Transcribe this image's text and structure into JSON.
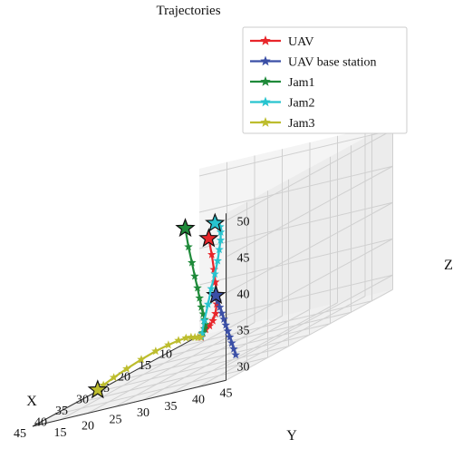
{
  "chart_data": {
    "type": "line",
    "projection": "3d",
    "title": "Trajectories",
    "xlabel": "X",
    "ylabel": "Y",
    "zlabel": "Z",
    "xlim": [
      5,
      45
    ],
    "ylim": [
      10,
      45
    ],
    "zlim": [
      28,
      51
    ],
    "xticks": [
      10,
      15,
      20,
      25,
      30,
      35,
      40,
      45
    ],
    "yticks": [
      15,
      20,
      25,
      30,
      35,
      40,
      45
    ],
    "zticks": [
      30,
      35,
      40,
      45,
      50
    ],
    "grid": true,
    "legend_position": "top-right",
    "marker": "star",
    "series": [
      {
        "name": "UAV",
        "color": "#e8262b",
        "points": [
          [
            16,
            20,
            43
          ],
          [
            16.6,
            21,
            40.8
          ],
          [
            17.4,
            22,
            38.8
          ],
          [
            18.4,
            23,
            37.2
          ],
          [
            19.6,
            24.2,
            35.8
          ],
          [
            21,
            25.2,
            34.6
          ],
          [
            22.6,
            26.2,
            33.6
          ],
          [
            24.3,
            27,
            33
          ],
          [
            26,
            27.7,
            32.7
          ],
          [
            27.6,
            28.2,
            32.6
          ],
          [
            28.8,
            28.5,
            32.4
          ],
          [
            29.6,
            28.9,
            32.2
          ],
          [
            30,
            29.2,
            32.1
          ]
        ]
      },
      {
        "name": "UAV base station",
        "color": "#3b4fa6",
        "points": [
          [
            5,
            13,
            33
          ],
          [
            8.9,
            16.3,
            32.8
          ],
          [
            12.8,
            19.6,
            32.6
          ],
          [
            16.7,
            22.9,
            32.4
          ],
          [
            20.6,
            26.2,
            32.2
          ],
          [
            24.5,
            29.5,
            32
          ],
          [
            28.4,
            32.8,
            31.8
          ],
          [
            32.3,
            36.1,
            31.6
          ],
          [
            36.2,
            39.4,
            31.4
          ],
          [
            40.1,
            42.7,
            31.2
          ],
          [
            44,
            46,
            31
          ]
        ]
      },
      {
        "name": "Jam1",
        "color": "#1f8a3a",
        "points": [
          [
            15,
            15,
            45
          ],
          [
            15.3,
            15.8,
            42.4
          ],
          [
            15.8,
            16.8,
            40.2
          ],
          [
            16.7,
            18,
            38.4
          ],
          [
            17.9,
            19.4,
            36.9
          ],
          [
            19.4,
            20.9,
            35.7
          ],
          [
            21.1,
            22.5,
            34.7
          ],
          [
            22.9,
            24.2,
            34
          ],
          [
            24.7,
            25.8,
            33.5
          ],
          [
            26.4,
            27.2,
            33.1
          ],
          [
            27.9,
            28.2,
            32.8
          ],
          [
            29.1,
            28.8,
            32.5
          ],
          [
            30,
            29.2,
            32.2
          ]
        ]
      },
      {
        "name": "Jam2",
        "color": "#28c4cf",
        "points": [
          [
            45,
            43,
            50
          ],
          [
            43.5,
            42,
            50
          ],
          [
            41.5,
            40.7,
            49.6
          ],
          [
            39.4,
            39.4,
            48.9
          ],
          [
            37.3,
            38.1,
            48
          ],
          [
            35.4,
            36.8,
            46.9
          ],
          [
            33.7,
            35.5,
            45.5
          ],
          [
            32.3,
            34.2,
            44
          ],
          [
            31.1,
            33,
            42.3
          ],
          [
            30.2,
            31.8,
            40.4
          ],
          [
            29.6,
            30.7,
            38.4
          ],
          [
            29.3,
            29.9,
            36.3
          ],
          [
            29.4,
            29.3,
            34.2
          ],
          [
            29.7,
            29.1,
            32.5
          ],
          [
            30,
            29.2,
            32.2
          ]
        ]
      },
      {
        "name": "Jam3",
        "color": "#bdbd2e",
        "points": [
          [
            40,
            18,
            30
          ],
          [
            37.3,
            17,
            30
          ],
          [
            34.4,
            16.7,
            30.2
          ],
          [
            31.7,
            17,
            30.5
          ],
          [
            29.4,
            17.9,
            30.9
          ],
          [
            27.8,
            19.3,
            31.3
          ],
          [
            27,
            21,
            31.6
          ],
          [
            27.1,
            22.9,
            31.9
          ],
          [
            27.7,
            24.7,
            32.1
          ],
          [
            28.6,
            26.3,
            32.2
          ],
          [
            29.4,
            27.6,
            32.2
          ],
          [
            30,
            28.6,
            32.2
          ],
          [
            30.2,
            29.2,
            32.2
          ]
        ]
      }
    ]
  }
}
